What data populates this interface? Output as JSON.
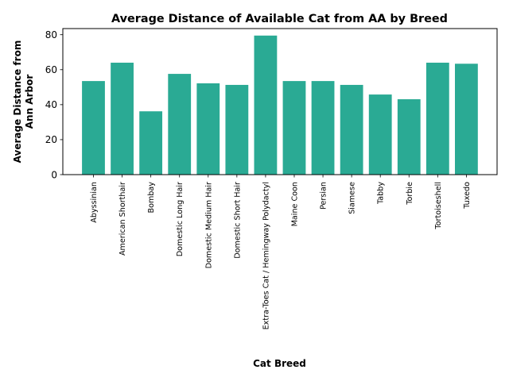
{
  "chart_data": {
    "type": "bar",
    "title": "Average Distance of Available Cat from AA by Breed",
    "xlabel": "Cat Breed",
    "ylabel_lines": [
      "Average Distance from",
      "Ann Arbor"
    ],
    "categories": [
      "Abyssinian",
      "American Shorthair",
      "Bombay",
      "Domestic Long Hair",
      "Domestic Medium Hair",
      "Domestic Short Hair",
      "Extra-Toes Cat / Hemingway Polydactyl",
      "Maine Coon",
      "Persian",
      "Siamese",
      "Tabby",
      "Torbie",
      "Tortoiseshell",
      "Tuxedo"
    ],
    "values": [
      53.5,
      64.0,
      36.2,
      57.6,
      52.2,
      51.3,
      79.5,
      53.5,
      53.5,
      51.3,
      45.8,
      43.1,
      64.0,
      63.4
    ],
    "ylim": [
      0,
      83.5
    ],
    "yticks": [
      0,
      20,
      40,
      60,
      80
    ],
    "bar_color": "#2aaa94",
    "grid": false
  }
}
